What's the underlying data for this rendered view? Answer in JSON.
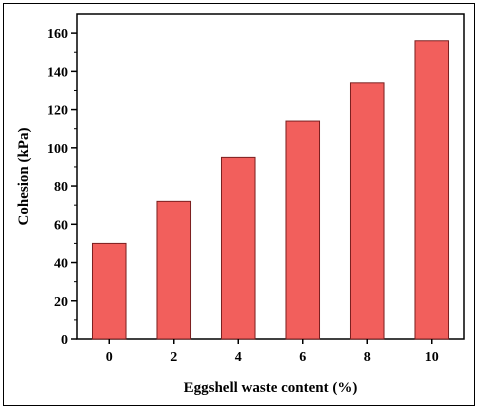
{
  "chart_data": {
    "type": "bar",
    "categories": [
      "0",
      "2",
      "4",
      "6",
      "8",
      "10"
    ],
    "values": [
      50,
      72,
      95,
      114,
      134,
      156
    ],
    "xlabel": "Eggshell waste content (%)",
    "ylabel": "Cohesion (kPa)",
    "ylim": [
      0,
      170
    ],
    "yticks": [
      0,
      20,
      40,
      60,
      80,
      100,
      120,
      140,
      160
    ],
    "grid": false,
    "bar_color": "#f25f5c",
    "bar_edge_color": "#7a1f1f"
  }
}
